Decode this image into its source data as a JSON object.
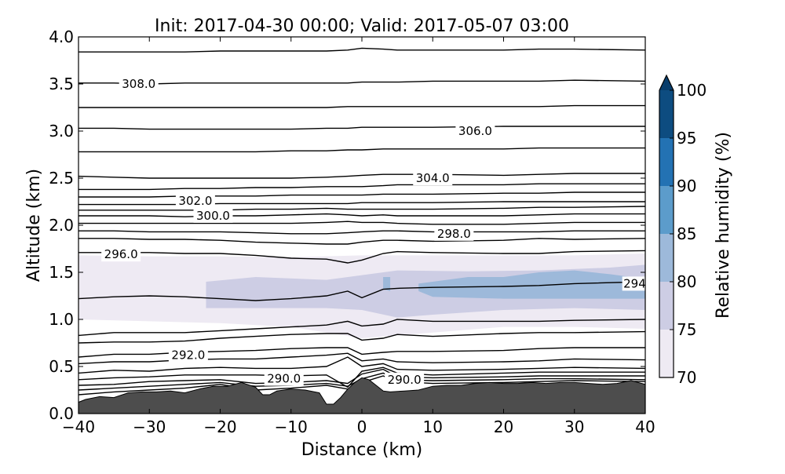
{
  "chart_data": {
    "type": "contour",
    "title": "Init: 2017-04-30 00:00; Valid: 2017-05-07 03:00",
    "xlabel": "Distance (km)",
    "ylabel": "Altitude (km)",
    "xlim": [
      -40,
      40
    ],
    "ylim": [
      0,
      4
    ],
    "x_ticks": [
      -40,
      -30,
      -20,
      -10,
      0,
      10,
      20,
      30,
      40
    ],
    "y_ticks": [
      0.0,
      0.5,
      1.0,
      1.5,
      2.0,
      2.5,
      3.0,
      3.5,
      4.0
    ],
    "x_tick_labels": [
      "−40",
      "−30",
      "−20",
      "−10",
      "0",
      "10",
      "20",
      "30",
      "40"
    ],
    "y_tick_labels": [
      "0.0",
      "0.5",
      "1.0",
      "1.5",
      "2.0",
      "2.5",
      "3.0",
      "3.5",
      "4.0"
    ],
    "colorbar": {
      "label": "Relative humidity (%)",
      "ticks": [
        70,
        75,
        80,
        85,
        90,
        95,
        100
      ],
      "tick_labels": [
        "70",
        "75",
        "80",
        "85",
        "90",
        "95",
        "100"
      ],
      "extend": "max",
      "levels": [
        {
          "from": 70,
          "to": 75,
          "color": "#eeeaf3"
        },
        {
          "from": 75,
          "to": 80,
          "color": "#cdcde4"
        },
        {
          "from": 80,
          "to": 85,
          "color": "#9db9da"
        },
        {
          "from": 85,
          "to": 90,
          "color": "#5c9ccb"
        },
        {
          "from": 90,
          "to": 95,
          "color": "#2372b3"
        },
        {
          "from": 95,
          "to": 100,
          "color": "#0d4c80"
        },
        {
          "from": 100,
          "to": null,
          "color": "#083d6b"
        }
      ]
    },
    "terrain": {
      "color": "#4d4d4d",
      "x": [
        -40,
        -39,
        -37,
        -35,
        -33,
        -31,
        -29,
        -27,
        -25,
        -23,
        -21,
        -19,
        -17,
        -15,
        -14,
        -13,
        -12,
        -10,
        -8,
        -6,
        -5,
        -4,
        -3,
        -2,
        -1,
        0,
        1,
        2,
        3,
        4,
        6,
        8,
        10,
        12,
        14,
        16,
        18,
        20,
        22,
        24,
        26,
        28,
        30,
        32,
        34,
        36,
        38,
        40
      ],
      "y": [
        0.12,
        0.15,
        0.18,
        0.17,
        0.22,
        0.23,
        0.23,
        0.24,
        0.22,
        0.26,
        0.29,
        0.29,
        0.33,
        0.28,
        0.2,
        0.2,
        0.24,
        0.26,
        0.25,
        0.22,
        0.1,
        0.1,
        0.17,
        0.26,
        0.33,
        0.38,
        0.36,
        0.3,
        0.24,
        0.23,
        0.24,
        0.25,
        0.29,
        0.3,
        0.3,
        0.32,
        0.33,
        0.32,
        0.32,
        0.33,
        0.32,
        0.33,
        0.33,
        0.32,
        0.31,
        0.32,
        0.35,
        0.31
      ]
    },
    "rh_regions": [
      {
        "level": "70-75",
        "x": [
          -40,
          -30,
          -20,
          -10,
          0,
          10,
          20,
          30,
          40,
          40,
          30,
          20,
          10,
          0,
          -10,
          -20,
          -30,
          -40
        ],
        "y": [
          1.68,
          1.67,
          1.67,
          1.66,
          1.68,
          1.68,
          1.68,
          1.68,
          1.7,
          0.9,
          0.92,
          0.92,
          0.86,
          0.8,
          0.92,
          0.96,
          0.98,
          1.0
        ]
      },
      {
        "level": "75-80",
        "x": [
          -22,
          -15,
          -5,
          0,
          5,
          15,
          25,
          35,
          40,
          40,
          30,
          20,
          10,
          5,
          0,
          -5,
          -12,
          -22
        ],
        "y": [
          1.4,
          1.45,
          1.42,
          1.47,
          1.52,
          1.51,
          1.52,
          1.55,
          1.58,
          1.1,
          1.12,
          1.1,
          1.05,
          1.02,
          1.1,
          1.12,
          1.12,
          1.12
        ]
      },
      {
        "level": "80-85",
        "x": [
          8,
          15,
          20,
          25,
          30,
          35,
          40,
          40,
          30,
          20,
          10,
          8
        ],
        "y": [
          1.38,
          1.45,
          1.45,
          1.5,
          1.52,
          1.48,
          1.43,
          1.22,
          1.22,
          1.22,
          1.24,
          1.3
        ]
      },
      {
        "level": "80-85",
        "x": [
          3,
          4,
          4,
          3
        ],
        "y": [
          1.45,
          1.45,
          1.3,
          1.32
        ]
      }
    ],
    "isentropes": {
      "color": "#000000",
      "lines": [
        {
          "y": [
            0.2,
            0.23,
            0.25,
            0.27,
            0.31,
            0.25,
            0.27,
            0.3,
            0.26,
            0.33,
            0.4,
            0.34,
            0.32,
            0.33,
            0.34,
            0.35,
            0.34
          ]
        },
        {
          "y": [
            0.25,
            0.27,
            0.29,
            0.31,
            0.33,
            0.29,
            0.3,
            0.32,
            0.29,
            0.37,
            0.43,
            0.36,
            0.35,
            0.36,
            0.37,
            0.37,
            0.36
          ]
        },
        {
          "y": [
            0.3,
            0.31,
            0.34,
            0.35,
            0.36,
            0.32,
            0.33,
            0.35,
            0.32,
            0.42,
            0.47,
            0.39,
            0.38,
            0.39,
            0.4,
            0.4,
            0.4
          ]
        },
        {
          "y": [
            0.36,
            0.38,
            0.39,
            0.41,
            0.41,
            0.41,
            0.4,
            0.41,
            0.28,
            0.45,
            0.49,
            0.43,
            0.41,
            0.43,
            0.44,
            0.44,
            0.44
          ]
        },
        {
          "y": [
            0.43,
            0.46,
            0.45,
            0.48,
            0.49,
            0.48,
            0.48,
            0.5,
            0.6,
            0.5,
            0.53,
            0.47,
            0.46,
            0.47,
            0.48,
            0.49,
            0.48
          ]
        },
        {
          "y": [
            0.53,
            0.55,
            0.55,
            0.57,
            0.58,
            0.58,
            0.6,
            0.62,
            0.64,
            0.56,
            0.58,
            0.55,
            0.54,
            0.55,
            0.56,
            0.58,
            0.57
          ]
        },
        {
          "y": [
            0.6,
            0.63,
            0.63,
            0.65,
            0.66,
            0.67,
            0.69,
            0.7,
            0.7,
            0.63,
            0.65,
            0.66,
            0.66,
            0.67,
            0.69,
            0.7,
            0.7
          ]
        },
        {
          "y": [
            0.75,
            0.76,
            0.76,
            0.77,
            0.8,
            0.82,
            0.84,
            0.85,
            0.85,
            0.78,
            0.8,
            0.84,
            0.82,
            0.85,
            0.86,
            0.86,
            0.87
          ]
        },
        {
          "y": [
            0.83,
            0.86,
            0.86,
            0.86,
            0.88,
            0.9,
            0.92,
            0.94,
            0.98,
            0.93,
            0.95,
            1.0,
            0.98,
            0.98,
            0.98,
            0.99,
            1.0
          ]
        },
        {
          "y": [
            1.22,
            1.24,
            1.25,
            1.24,
            1.22,
            1.2,
            1.22,
            1.25,
            1.3,
            1.23,
            1.32,
            1.33,
            1.34,
            1.35,
            1.36,
            1.38,
            1.4
          ]
        },
        {
          "y": [
            1.71,
            1.71,
            1.71,
            1.7,
            1.7,
            1.68,
            1.65,
            1.64,
            1.6,
            1.63,
            1.7,
            1.72,
            1.71,
            1.7,
            1.7,
            1.72,
            1.73
          ]
        },
        {
          "y": [
            1.86,
            1.86,
            1.85,
            1.85,
            1.84,
            1.82,
            1.81,
            1.8,
            1.8,
            1.82,
            1.84,
            1.84,
            1.83,
            1.84,
            1.86,
            1.85,
            1.86
          ]
        },
        {
          "y": [
            1.94,
            1.94,
            1.93,
            1.93,
            1.93,
            1.92,
            1.91,
            1.91,
            1.92,
            1.93,
            1.94,
            1.94,
            1.93,
            1.93,
            1.93,
            1.94,
            1.94
          ]
        },
        {
          "y": [
            2.02,
            2.02,
            2.02,
            2.02,
            2.02,
            2.02,
            2.02,
            2.03,
            2.04,
            2.03,
            2.03,
            2.02,
            2.01,
            2.01,
            2.02,
            2.03,
            2.03
          ]
        },
        {
          "y": [
            2.1,
            2.1,
            2.1,
            2.09,
            2.1,
            2.1,
            2.11,
            2.12,
            2.11,
            2.1,
            2.11,
            2.1,
            2.1,
            2.1,
            2.11,
            2.12,
            2.12
          ]
        },
        {
          "y": [
            2.16,
            2.16,
            2.16,
            2.16,
            2.16,
            2.17,
            2.17,
            2.18,
            2.17,
            2.17,
            2.17,
            2.17,
            2.17,
            2.18,
            2.19,
            2.19,
            2.2
          ]
        },
        {
          "y": [
            2.22,
            2.22,
            2.22,
            2.22,
            2.23,
            2.23,
            2.23,
            2.23,
            2.23,
            2.24,
            2.24,
            2.24,
            2.24,
            2.25,
            2.25,
            2.25,
            2.25
          ]
        },
        {
          "y": [
            2.3,
            2.3,
            2.3,
            2.31,
            2.31,
            2.31,
            2.32,
            2.32,
            2.32,
            2.32,
            2.33,
            2.33,
            2.33,
            2.34,
            2.34,
            2.35,
            2.35
          ]
        },
        {
          "y": [
            2.38,
            2.38,
            2.38,
            2.39,
            2.39,
            2.4,
            2.4,
            2.41,
            2.41,
            2.41,
            2.42,
            2.43,
            2.43,
            2.43,
            2.44,
            2.44,
            2.44
          ]
        },
        {
          "y": [
            2.52,
            2.51,
            2.5,
            2.5,
            2.5,
            2.5,
            2.5,
            2.51,
            2.52,
            2.53,
            2.54,
            2.54,
            2.54,
            2.53,
            2.54,
            2.55,
            2.55
          ]
        },
        {
          "y": [
            2.78,
            2.78,
            2.78,
            2.78,
            2.78,
            2.78,
            2.79,
            2.79,
            2.8,
            2.8,
            2.81,
            2.81,
            2.81,
            2.81,
            2.82,
            2.82,
            2.82
          ]
        },
        {
          "y": [
            3.03,
            3.03,
            3.02,
            3.02,
            3.02,
            3.02,
            3.02,
            3.03,
            3.03,
            3.04,
            3.04,
            3.04,
            3.04,
            3.05,
            3.05,
            3.05,
            3.05
          ]
        },
        {
          "y": [
            3.25,
            3.25,
            3.25,
            3.25,
            3.25,
            3.25,
            3.25,
            3.25,
            3.26,
            3.26,
            3.26,
            3.26,
            3.26,
            3.26,
            3.26,
            3.27,
            3.27
          ]
        },
        {
          "y": [
            3.51,
            3.51,
            3.5,
            3.51,
            3.51,
            3.51,
            3.51,
            3.51,
            3.51,
            3.52,
            3.52,
            3.52,
            3.53,
            3.53,
            3.53,
            3.54,
            3.53
          ]
        },
        {
          "y": [
            3.84,
            3.84,
            3.84,
            3.84,
            3.85,
            3.85,
            3.85,
            3.85,
            3.86,
            3.88,
            3.87,
            3.86,
            3.86,
            3.86,
            3.87,
            3.87,
            3.86
          ]
        }
      ]
    },
    "isentrope_x": [
      -40,
      -35,
      -30,
      -25,
      -20,
      -15,
      -10,
      -5,
      -2,
      0,
      3,
      5,
      10,
      20,
      25,
      30,
      40
    ],
    "contour_labels": [
      {
        "text": "308.0",
        "x": -31.5,
        "y": 3.5
      },
      {
        "text": "306.0",
        "x": 16,
        "y": 3.0
      },
      {
        "text": "304.0",
        "x": 10,
        "y": 2.5
      },
      {
        "text": "302.0",
        "x": -23.5,
        "y": 2.26
      },
      {
        "text": "300.0",
        "x": -21,
        "y": 2.1
      },
      {
        "text": "298.0",
        "x": 13,
        "y": 1.91
      },
      {
        "text": "296.0",
        "x": -34,
        "y": 1.69
      },
      {
        "text": "294",
        "x": 38.5,
        "y": 1.38
      },
      {
        "text": "292.0",
        "x": -24.5,
        "y": 0.62
      },
      {
        "text": "290.0",
        "x": -11,
        "y": 0.37
      },
      {
        "text": "290.0",
        "x": 6,
        "y": 0.36
      }
    ]
  }
}
